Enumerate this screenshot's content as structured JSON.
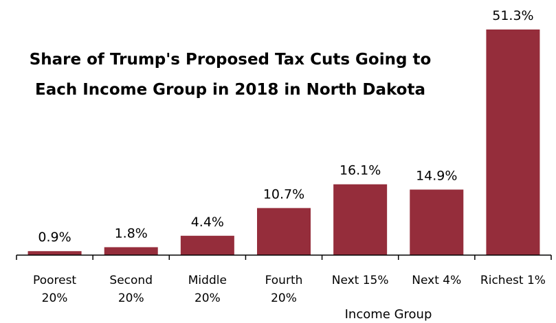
{
  "chart_data": {
    "type": "bar",
    "title_lines": [
      "Share of Trump's Proposed Tax Cuts Going to",
      "Each Income Group in 2018 in North Dakota"
    ],
    "xlabel": "Income Group",
    "ylabel": "",
    "categories": [
      [
        "Poorest",
        "20%"
      ],
      [
        "Second",
        "20%"
      ],
      [
        "Middle",
        "20%"
      ],
      [
        "Fourth",
        "20%"
      ],
      [
        "Next 15%"
      ],
      [
        "Next 4%"
      ],
      [
        "Richest 1%"
      ]
    ],
    "values": [
      0.9,
      1.8,
      4.4,
      10.7,
      16.1,
      14.9,
      51.3
    ],
    "value_labels": [
      "0.9%",
      "1.8%",
      "4.4%",
      "10.7%",
      "16.1%",
      "14.9%",
      "51.3%"
    ],
    "ylim": [
      0,
      51.3
    ],
    "grid": false,
    "legend": "none",
    "bar_color": "#952D3B"
  }
}
